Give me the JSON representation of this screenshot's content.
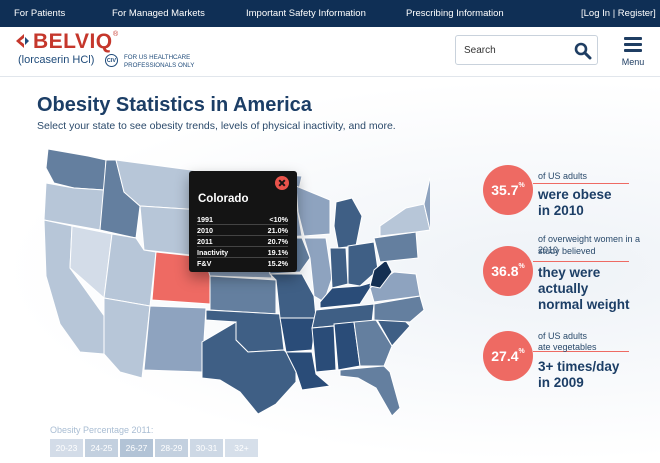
{
  "topnav": {
    "for_patients": "For Patients",
    "for_managed_markets": "For Managed Markets",
    "safety": "Important Safety Information",
    "prescribing": "Prescribing Information",
    "login": "[Log In | Register]"
  },
  "brand": {
    "name": "BELVIQ",
    "reg": "®",
    "generic": "(lorcaserin HCl)",
    "schedule": "CIV",
    "audience": "FOR US HEALTHCARE PROFESSIONALS ONLY"
  },
  "search": {
    "placeholder": "Search"
  },
  "menu": {
    "label": "Menu"
  },
  "page": {
    "title": "Obesity Statistics in America",
    "subtitle": "Select your state to see obesity trends, levels of physical inactivity, and more."
  },
  "tooltip": {
    "state": "Colorado",
    "rows": [
      {
        "label": "1991",
        "value": "<10%"
      },
      {
        "label": "2010",
        "value": "21.0%"
      },
      {
        "label": "2011",
        "value": "20.7%"
      },
      {
        "label": "Inactivity",
        "value": "19.1%"
      },
      {
        "label": "F&V",
        "value": "15.2%"
      }
    ]
  },
  "stats": [
    {
      "value": "35.7",
      "unit": "%",
      "small": "of US adults",
      "big1": "were obese",
      "big2": "in 2010",
      "big3": ""
    },
    {
      "value": "36.8",
      "unit": "%",
      "small": "of overweight women in a 2010",
      "small2": "study believed",
      "big1": "they were",
      "big2": "actually",
      "big3": "normal weight"
    },
    {
      "value": "27.4",
      "unit": "%",
      "small": "of US adults",
      "small2": "ate vegetables",
      "big1": "3+ times/day",
      "big2": "in 2009",
      "big3": ""
    }
  ],
  "legend": {
    "title": "Obesity Percentage 2011:",
    "ranges": [
      "20-23",
      "24-25",
      "26-27",
      "28-29",
      "30-31",
      "32+"
    ],
    "colors": [
      "#d3dce8",
      "#b7c6d8",
      "#8ea3bf",
      "#647f9f",
      "#3f5f85",
      "#2a4c78"
    ]
  },
  "colors": {
    "nav": "#0f2f55",
    "accent": "#ee6a63",
    "selected_state": "#ee6a63"
  }
}
